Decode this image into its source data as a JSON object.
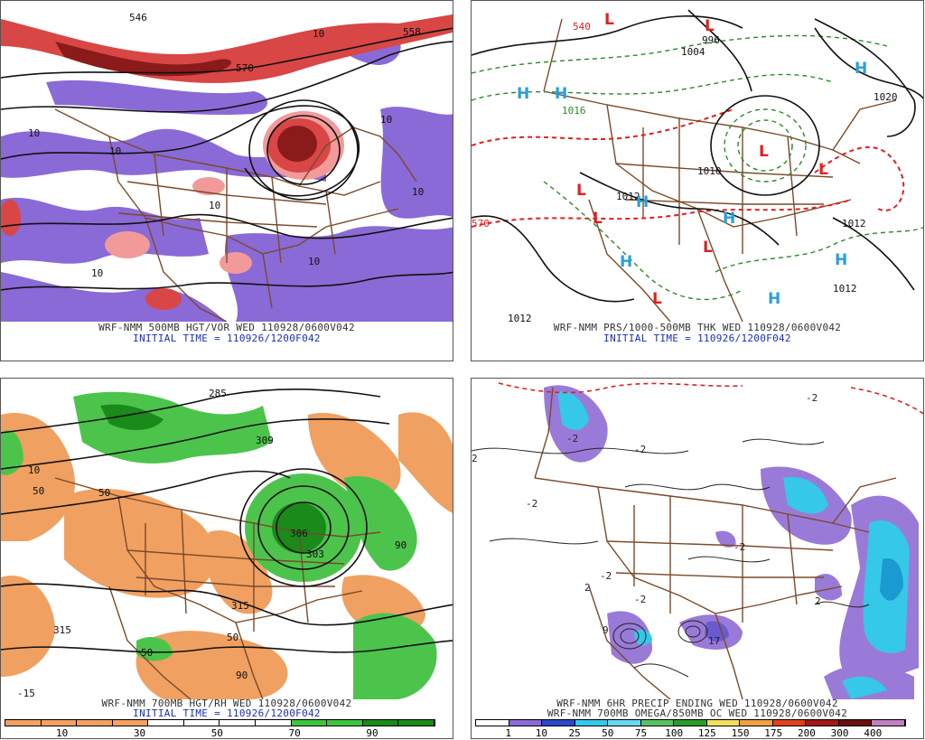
{
  "panels": [
    {
      "id": "p500",
      "caption_line1": "WRF-NMM 500MB HGT/VOR WED 110928/0600V042",
      "caption_line2": "INITIAL TIME = 110926/1200F042",
      "contour_labels": [
        "546",
        "570",
        "558",
        "10",
        "10",
        "10",
        "10",
        "10",
        "10",
        "10",
        "10"
      ],
      "colors": {
        "negative": "#8a6ad6",
        "positive_light": "#f29a9a",
        "positive_mid": "#d84646",
        "positive_dark": "#8b1a1a",
        "contour": "#111111",
        "border": "#7a4a2a"
      }
    },
    {
      "id": "psfc",
      "caption_line1": "WRF-NMM PRS/1000-500MB THK WED 110928/0600V042",
      "caption_line2": "INITIAL TIME = 110926/1200F042",
      "contour_labels": [
        "1004",
        "996",
        "1020",
        "1012",
        "1012",
        "1012",
        "1010",
        "1016",
        "540",
        "570",
        "1012"
      ],
      "centers": [
        {
          "t": "L",
          "c": "low"
        },
        {
          "t": "L",
          "c": "low"
        },
        {
          "t": "L",
          "c": "low"
        },
        {
          "t": "L",
          "c": "low"
        },
        {
          "t": "L",
          "c": "low"
        },
        {
          "t": "L",
          "c": "low"
        },
        {
          "t": "L",
          "c": "low"
        },
        {
          "t": "H",
          "c": "high"
        },
        {
          "t": "H",
          "c": "high"
        },
        {
          "t": "H",
          "c": "high"
        },
        {
          "t": "H",
          "c": "high"
        },
        {
          "t": "H",
          "c": "high"
        },
        {
          "t": "H",
          "c": "high"
        },
        {
          "t": "H",
          "c": "high"
        },
        {
          "t": "H",
          "c": "high"
        }
      ],
      "colors": {
        "low": "#e02020",
        "high": "#2aa0d8",
        "thick_cold": "#2a8a2a",
        "thick_warm": "#e02020",
        "isobar": "#111111",
        "border": "#7a4a2a"
      }
    },
    {
      "id": "p700",
      "caption_line1": "WRF-NMM 700MB HGT/RH WED 110928/0600V042",
      "caption_line2": "INITIAL TIME = 110926/1200F042",
      "contour_labels": [
        "50",
        "10",
        "50",
        "306",
        "315",
        "315",
        "90",
        "90",
        "50",
        "50",
        "-15",
        "285",
        "309",
        "303"
      ],
      "colors": {
        "dry": "#f0a060",
        "moist_light": "#4cc44c",
        "moist_dark": "#1a8a1a",
        "contour": "#111111",
        "border": "#7a4a2a"
      },
      "colorbar": {
        "colors": [
          "#f4a060",
          "#f4a060",
          "#f4a060",
          "#f4a060",
          "#ffffff",
          "#ffffff",
          "#ffffff",
          "#ffffff",
          "#3ec43e",
          "#3ec43e",
          "#1a8a1a",
          "#1a8a1a"
        ],
        "labels": [
          "10",
          "30",
          "50",
          "70",
          "90"
        ]
      }
    },
    {
      "id": "pqpf",
      "caption_line1": "WRF-NMM 6HR PRECIP ENDING WED 110928/0600V042",
      "caption_line2": "WRF-NMM 700MB OMEGA/850MB OC WED 110928/0600V042",
      "contour_labels": [
        "-2",
        "-2",
        "-2",
        "2",
        "2",
        "-2",
        "-2",
        "2",
        "9",
        "17",
        "-2",
        "-2"
      ],
      "colors": {
        "p1": "#9a7ad8",
        "p2": "#6a5ad0",
        "p3": "#36c8e8",
        "p4": "#1a9ad0",
        "contour": "#222222",
        "border": "#7a4a2a",
        "warm": "#e02020"
      },
      "colorbar": {
        "colors": [
          "#ffffff",
          "#8a6ad6",
          "#2a48c8",
          "#36c8e8",
          "#6ad8f0",
          "#5ac060",
          "#2a9a2a",
          "#f0e060",
          "#f0a040",
          "#e04020",
          "#a01818",
          "#6a1010",
          "#c080c0"
        ],
        "labels": [
          "1",
          "10",
          "25",
          "50",
          "75",
          "100",
          "125",
          "150",
          "175",
          "200",
          "300",
          "400"
        ]
      }
    }
  ]
}
